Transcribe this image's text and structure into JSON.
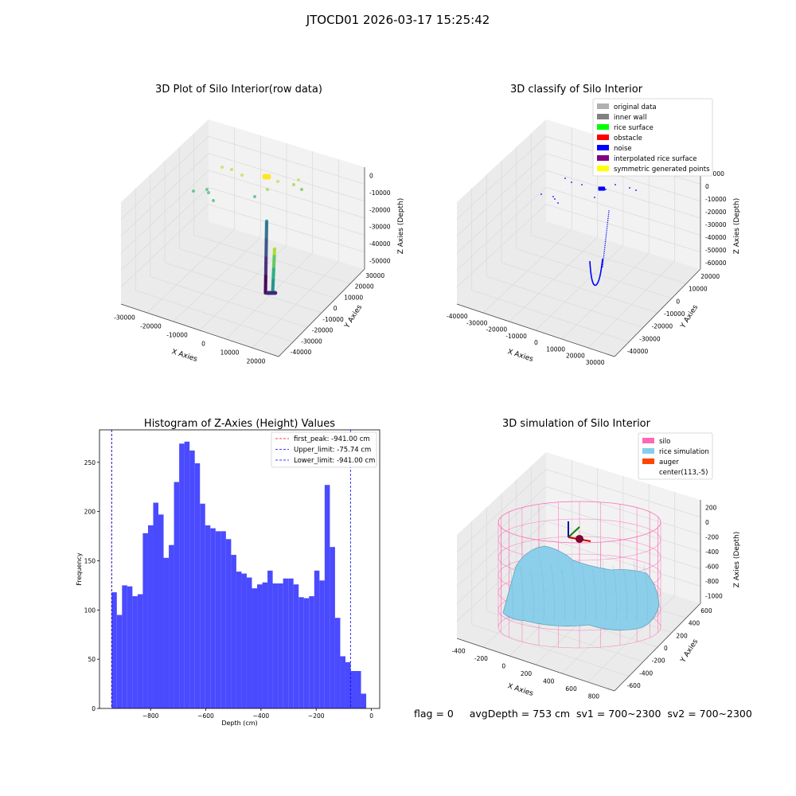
{
  "suptitle": "JTOCD01 2026-03-17 15:25:42",
  "footer": "flag = 0     avgDepth = 753 cm  sv1 = 700~2300  sv2 = 700~2300",
  "colors": {
    "histogram_bar": "#4a4aff",
    "first_peak_line": "#ff0000",
    "upper_limit_line": "#0000ff",
    "lower_limit_line": "#0000ff",
    "original_data": "#b0b0b0",
    "inner_wall": "#808080",
    "rice_surface": "#00ff00",
    "obstacle": "#ff0000",
    "noise": "#0000ff",
    "interpolated_rice_surface": "#800080",
    "symmetric_generated_points": "#ffff00",
    "silo": "#ff69b4",
    "rice_simulation": "#87ceeb",
    "auger": "#ff4500"
  },
  "chart_data": [
    {
      "type": "scatter",
      "subtype": "3d",
      "title": "3D Plot of Silo Interior(row data)",
      "xlabel": "X Axies",
      "ylabel": "Y Axies",
      "zlabel": "Z Axies (Depth)",
      "x_ticks": [
        "-30000",
        "-20000",
        "-10000",
        "0",
        "10000",
        "20000"
      ],
      "y_ticks": [
        "30000",
        "20000",
        "10000",
        "0",
        "-10000",
        "-20000",
        "-30000",
        "-40000"
      ],
      "z_ticks": [
        "0",
        "-10000",
        "-20000",
        "-30000",
        "-40000",
        "-50000"
      ],
      "colormap": "viridis"
    },
    {
      "type": "scatter",
      "subtype": "3d",
      "title": "3D classify of Silo Interior",
      "xlabel": "X Axies",
      "ylabel": "Y Axies",
      "zlabel": "Z Axies (Depth)",
      "x_ticks": [
        "-40000",
        "-30000",
        "-20000",
        "-10000",
        "0",
        "10000",
        "20000",
        "30000"
      ],
      "y_ticks": [
        "20000",
        "10000",
        "0",
        "-10000",
        "-20000",
        "-30000",
        "-40000"
      ],
      "z_ticks": [
        "10000",
        "0",
        "-10000",
        "-20000",
        "-30000",
        "-40000",
        "-50000",
        "-60000"
      ],
      "legend_placement": "top-right",
      "legend": [
        {
          "label": "original data",
          "color": "#b0b0b0"
        },
        {
          "label": "inner wall",
          "color": "#808080"
        },
        {
          "label": "rice surface",
          "color": "#00ff00"
        },
        {
          "label": "obstacle",
          "color": "#ff0000"
        },
        {
          "label": "noise",
          "color": "#0000ff"
        },
        {
          "label": "interpolated rice surface",
          "color": "#800080"
        },
        {
          "label": "symmetric generated points",
          "color": "#ffff00"
        }
      ]
    },
    {
      "type": "bar",
      "subtype": "histogram",
      "title": "Histogram of Z-Axies (Height) Values",
      "xlabel": "Depth (cm)",
      "ylabel": "Frequency",
      "xlim": [
        -985,
        30
      ],
      "ylim": [
        0,
        283
      ],
      "x_ticks": [
        -800,
        -600,
        -400,
        -200,
        0
      ],
      "y_ticks": [
        0,
        50,
        100,
        150,
        200,
        250
      ],
      "bin_start": -941,
      "bin_width": 18.82,
      "values": [
        118,
        95,
        125,
        124,
        114,
        116,
        178,
        186,
        209,
        197,
        153,
        166,
        230,
        269,
        271,
        262,
        249,
        208,
        186,
        183,
        180,
        180,
        172,
        156,
        139,
        137,
        133,
        122,
        126,
        128,
        140,
        127,
        127,
        132,
        132,
        126,
        113,
        112,
        114,
        140,
        130,
        227,
        164,
        92,
        53,
        47,
        38,
        38,
        15
      ],
      "vlines": [
        {
          "label": "first_peak: -941.00 cm",
          "x": -941,
          "color": "#ff0000"
        },
        {
          "label": "Upper_limit: -75.74 cm",
          "x": -75.74,
          "color": "#0000ff"
        },
        {
          "label": "Lower_limit: -941.00 cm",
          "x": -941,
          "color": "#0000ff"
        }
      ],
      "legend_placement": "top-right"
    },
    {
      "type": "area",
      "subtype": "3d-surface",
      "title": "3D simulation of Silo Interior",
      "xlabel": "X Axies",
      "ylabel": "Y Axies",
      "zlabel": "Z Axies (Depth)",
      "x_ticks": [
        "-400",
        "-200",
        "0",
        "200",
        "400",
        "600",
        "800"
      ],
      "y_ticks": [
        "600",
        "400",
        "200",
        "0",
        "-200",
        "-400",
        "-600"
      ],
      "z_ticks": [
        "200",
        "0",
        "-200",
        "-400",
        "-600",
        "-800",
        "-1000"
      ],
      "legend_placement": "top-right",
      "legend": [
        {
          "label": "silo",
          "color": "#ff69b4"
        },
        {
          "label": "rice simulation",
          "color": "#87ceeb"
        },
        {
          "label": "auger",
          "color": "#ff4500"
        },
        {
          "label": "center(113,-5)",
          "color": ""
        }
      ]
    }
  ]
}
